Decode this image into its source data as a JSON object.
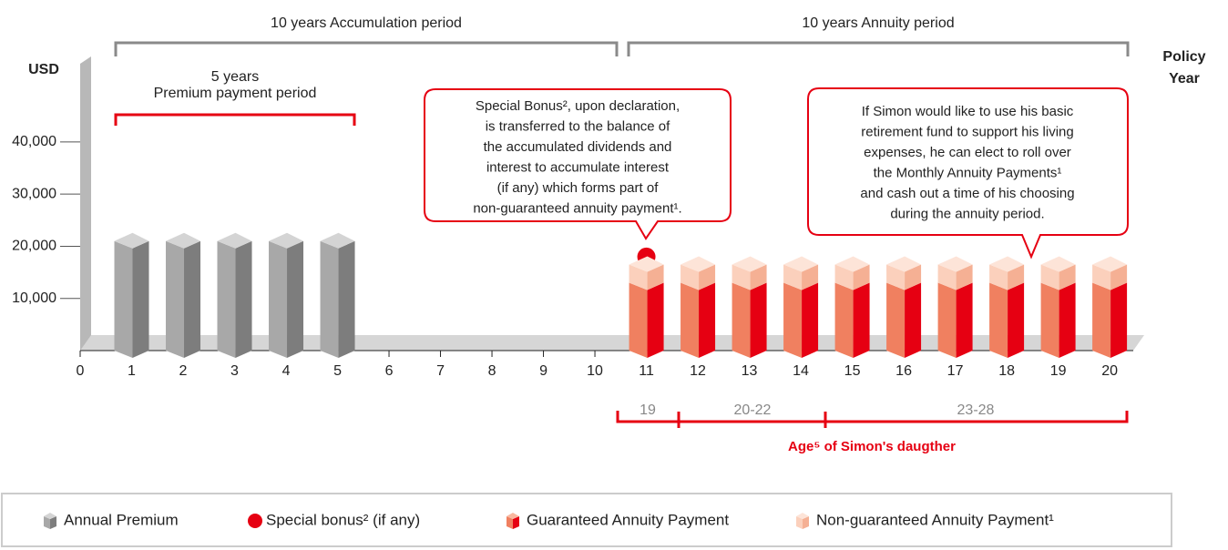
{
  "chart_data": {
    "type": "bar3d",
    "y_label": "USD",
    "x_label": [
      "Policy",
      "Year"
    ],
    "xlim": [
      0,
      20.6
    ],
    "xticks": [
      0,
      1,
      2,
      3,
      4,
      5,
      6,
      7,
      8,
      9,
      10,
      11,
      12,
      13,
      14,
      15,
      16,
      17,
      18,
      19,
      20
    ],
    "ylim": [
      0,
      55000
    ],
    "yticks": [
      {
        "value": 10000,
        "label": "10,000"
      },
      {
        "value": 20000,
        "label": "20,000"
      },
      {
        "value": 30000,
        "label": "30,000"
      },
      {
        "value": 40000,
        "label": "40,000"
      }
    ],
    "series": [
      {
        "name": "Annual Premium",
        "color": "#a8a8a8",
        "x": [
          1,
          2,
          3,
          4,
          5
        ],
        "values": [
          21000,
          21000,
          21000,
          21000,
          21000
        ]
      },
      {
        "name": "Special bonus² (if any)",
        "color": "#e60012",
        "marker": "dot",
        "x": [
          11
        ],
        "values": [
          18000
        ]
      },
      {
        "name": "Guaranteed Annuity Payment",
        "color": "#f08060",
        "x": [
          11,
          12,
          13,
          14,
          15,
          16,
          17,
          18,
          19,
          20
        ],
        "values": [
          13000,
          13000,
          13000,
          13000,
          13000,
          13000,
          13000,
          13000,
          13000,
          13000
        ]
      },
      {
        "name": "Non-guaranteed Annuity Payment¹",
        "color": "#fbd0bc",
        "stacked_on": 2,
        "x": [
          11,
          12,
          13,
          14,
          15,
          16,
          17,
          18,
          19,
          20
        ],
        "values": [
          3500,
          3500,
          3500,
          3500,
          3500,
          3500,
          3500,
          3500,
          3500,
          3500
        ]
      }
    ],
    "annotations": {
      "accumulation": "10 years Accumulation period",
      "annuity": "10 years Annuity period",
      "premium": [
        "5 years",
        "Premium payment period"
      ],
      "callout_bonus": [
        "Special Bonus², upon declaration,",
        "is transferred to the balance of",
        "the accumulated dividends and",
        "interest to accumulate interest",
        "(if any) which forms part of",
        "non-guaranteed annuity payment¹."
      ],
      "callout_rollover": [
        "If Simon would like to use his basic",
        "retirement fund to support his living",
        "expenses, he can elect to roll over",
        "the Monthly Annuity Payments¹",
        "and cash out a time of his choosing",
        "during the annuity period."
      ],
      "ages": [
        "19",
        "20-22",
        "23-28"
      ],
      "age_label": "Age⁵ of Simon's daugther"
    }
  }
}
